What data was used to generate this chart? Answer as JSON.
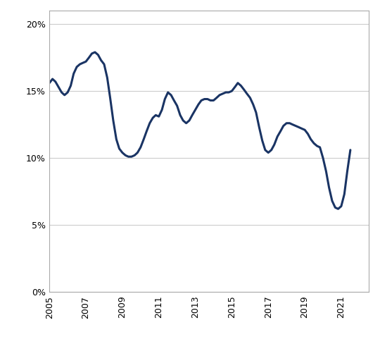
{
  "title": "",
  "line_color": "#1a3464",
  "line_width": 2.2,
  "background_color": "#ffffff",
  "grid_color": "#cccccc",
  "x_label": "",
  "y_label": "",
  "xlim": [
    2005,
    2022.5
  ],
  "ylim": [
    0.0,
    0.21
  ],
  "yticks": [
    0.0,
    0.05,
    0.1,
    0.15,
    0.2
  ],
  "ytick_labels": [
    "0%",
    "5%",
    "10%",
    "15%",
    "20%"
  ],
  "xticks": [
    2005,
    2007,
    2009,
    2011,
    2013,
    2015,
    2017,
    2019,
    2021
  ],
  "x": [
    2005.0,
    2005.17,
    2005.33,
    2005.5,
    2005.67,
    2005.83,
    2006.0,
    2006.17,
    2006.33,
    2006.5,
    2006.67,
    2006.83,
    2007.0,
    2007.17,
    2007.33,
    2007.5,
    2007.67,
    2007.83,
    2008.0,
    2008.17,
    2008.33,
    2008.5,
    2008.67,
    2008.83,
    2009.0,
    2009.17,
    2009.33,
    2009.5,
    2009.67,
    2009.83,
    2010.0,
    2010.17,
    2010.33,
    2010.5,
    2010.67,
    2010.83,
    2011.0,
    2011.17,
    2011.33,
    2011.5,
    2011.67,
    2011.83,
    2012.0,
    2012.17,
    2012.33,
    2012.5,
    2012.67,
    2012.83,
    2013.0,
    2013.17,
    2013.33,
    2013.5,
    2013.67,
    2013.83,
    2014.0,
    2014.17,
    2014.33,
    2014.5,
    2014.67,
    2014.83,
    2015.0,
    2015.17,
    2015.33,
    2015.5,
    2015.67,
    2015.83,
    2016.0,
    2016.17,
    2016.33,
    2016.5,
    2016.67,
    2016.83,
    2017.0,
    2017.17,
    2017.33,
    2017.5,
    2017.67,
    2017.83,
    2018.0,
    2018.17,
    2018.33,
    2018.5,
    2018.67,
    2018.83,
    2019.0,
    2019.17,
    2019.33,
    2019.5,
    2019.67,
    2019.83,
    2020.0,
    2020.17,
    2020.33,
    2020.5,
    2020.67,
    2020.83,
    2021.0,
    2021.17,
    2021.33,
    2021.5
  ],
  "y": [
    0.156,
    0.159,
    0.157,
    0.153,
    0.149,
    0.147,
    0.149,
    0.154,
    0.163,
    0.168,
    0.17,
    0.171,
    0.172,
    0.175,
    0.178,
    0.179,
    0.177,
    0.173,
    0.17,
    0.16,
    0.145,
    0.128,
    0.114,
    0.107,
    0.104,
    0.102,
    0.101,
    0.101,
    0.102,
    0.104,
    0.108,
    0.114,
    0.12,
    0.126,
    0.13,
    0.132,
    0.131,
    0.136,
    0.144,
    0.149,
    0.147,
    0.143,
    0.139,
    0.132,
    0.128,
    0.126,
    0.128,
    0.132,
    0.136,
    0.14,
    0.143,
    0.144,
    0.144,
    0.143,
    0.143,
    0.145,
    0.147,
    0.148,
    0.149,
    0.149,
    0.15,
    0.153,
    0.156,
    0.154,
    0.151,
    0.148,
    0.145,
    0.14,
    0.134,
    0.123,
    0.113,
    0.106,
    0.104,
    0.106,
    0.11,
    0.116,
    0.12,
    0.124,
    0.126,
    0.126,
    0.125,
    0.124,
    0.123,
    0.122,
    0.121,
    0.118,
    0.114,
    0.111,
    0.109,
    0.108,
    0.1,
    0.09,
    0.078,
    0.068,
    0.063,
    0.062,
    0.064,
    0.073,
    0.09,
    0.106
  ]
}
